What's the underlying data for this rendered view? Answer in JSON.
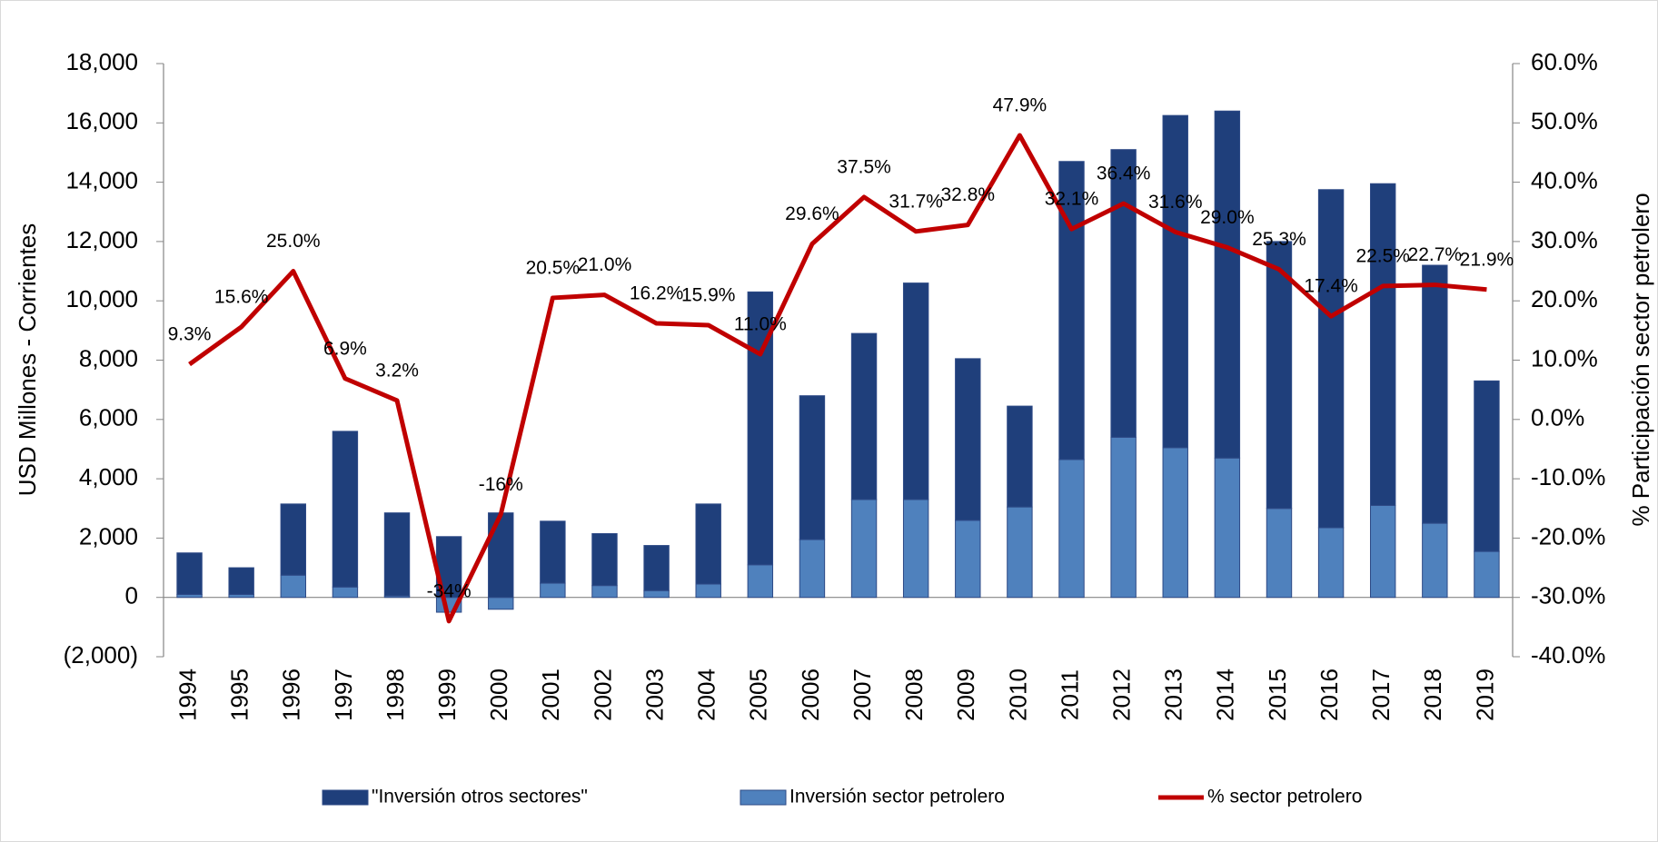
{
  "chart_data": {
    "type": "bar_line",
    "categories": [
      "1994",
      "1995",
      "1996",
      "1997",
      "1998",
      "1999",
      "2000",
      "2001",
      "2002",
      "2003",
      "2004",
      "2005",
      "2006",
      "2007",
      "2008",
      "2009",
      "2010",
      "2011",
      "2012",
      "2013",
      "2014",
      "2015",
      "2016",
      "2017",
      "2018",
      "2019"
    ],
    "series": [
      {
        "name": "Inversión sector petrolero",
        "color": "#4f81bd",
        "type": "bar",
        "values": [
          100,
          100,
          750,
          350,
          50,
          -500,
          -400,
          480,
          400,
          230,
          450,
          1100,
          1950,
          3300,
          3300,
          2600,
          3050,
          4650,
          5400,
          5050,
          4700,
          3000,
          2350,
          3100,
          2500,
          1550
        ]
      },
      {
        "name": "\"Inversión otros sectores\"",
        "color": "#1f3f7b",
        "type": "bar",
        "values": [
          1400,
          900,
          2400,
          5250,
          2800,
          2050,
          2850,
          2090,
          1750,
          1520,
          2700,
          9200,
          4850,
          5600,
          7300,
          5450,
          3400,
          10050,
          9700,
          11200,
          11700,
          9000,
          11400,
          10850,
          8700,
          5750
        ]
      },
      {
        "name": "% sector petrolero",
        "color": "#c00000",
        "type": "line",
        "axis": "y2",
        "values": [
          9.3,
          15.6,
          25.0,
          6.9,
          3.2,
          -34,
          -16,
          20.5,
          21.0,
          16.2,
          15.9,
          11.0,
          29.6,
          37.5,
          31.7,
          32.8,
          47.9,
          32.1,
          36.4,
          31.6,
          29.0,
          25.3,
          17.4,
          22.5,
          22.7,
          21.9
        ],
        "value_labels": [
          "9.3%",
          "15.6%",
          "25.0%",
          "6.9%",
          "3.2%",
          "-34%",
          "-16%",
          "20.5%",
          "21.0%",
          "16.2%",
          "15.9%",
          "11.0%",
          "29.6%",
          "37.5%",
          "31.7%",
          "32.8%",
          "47.9%",
          "32.1%",
          "36.4%",
          "31.6%",
          "29.0%",
          "25.3%",
          "17.4%",
          "22.5%",
          "22.7%",
          "21.9%"
        ],
        "label_color": "#ff0000"
      }
    ],
    "legend_order": [
      1,
      0,
      2
    ],
    "y_label": "USD  Millones - Corrientes",
    "y2_label": "% Participación sector petrolero",
    "ylim": [
      -2000,
      18000
    ],
    "yticks": [
      {
        "value": -2000,
        "label": "(2,000)"
      },
      0,
      {
        "value": 2000,
        "label": "2,000"
      },
      {
        "value": 4000,
        "label": "4,000"
      },
      {
        "value": 6000,
        "label": "6,000"
      },
      {
        "value": 8000,
        "label": "8,000"
      },
      {
        "value": 10000,
        "label": "10,000"
      },
      {
        "value": 12000,
        "label": "12,000"
      },
      {
        "value": 14000,
        "label": "14,000"
      },
      {
        "value": 16000,
        "label": "16,000"
      },
      {
        "value": 18000,
        "label": "18,000"
      }
    ],
    "y2lim": [
      -40,
      60
    ],
    "y2ticks": [
      {
        "value": -40,
        "label": "-40.0%"
      },
      {
        "value": -30,
        "label": "-30.0%"
      },
      {
        "value": -20,
        "label": "-20.0%"
      },
      {
        "value": -10,
        "label": "-10.0%"
      },
      {
        "value": 0,
        "label": "0.0%"
      },
      {
        "value": 10,
        "label": "10.0%"
      },
      {
        "value": 20,
        "label": "20.0%"
      },
      {
        "value": 30,
        "label": "30.0%"
      },
      {
        "value": 40,
        "label": "40.0%"
      },
      {
        "value": 50,
        "label": "50.0%"
      },
      {
        "value": 60,
        "label": "60.0%"
      }
    ],
    "grid": false,
    "legend": "bottom"
  }
}
